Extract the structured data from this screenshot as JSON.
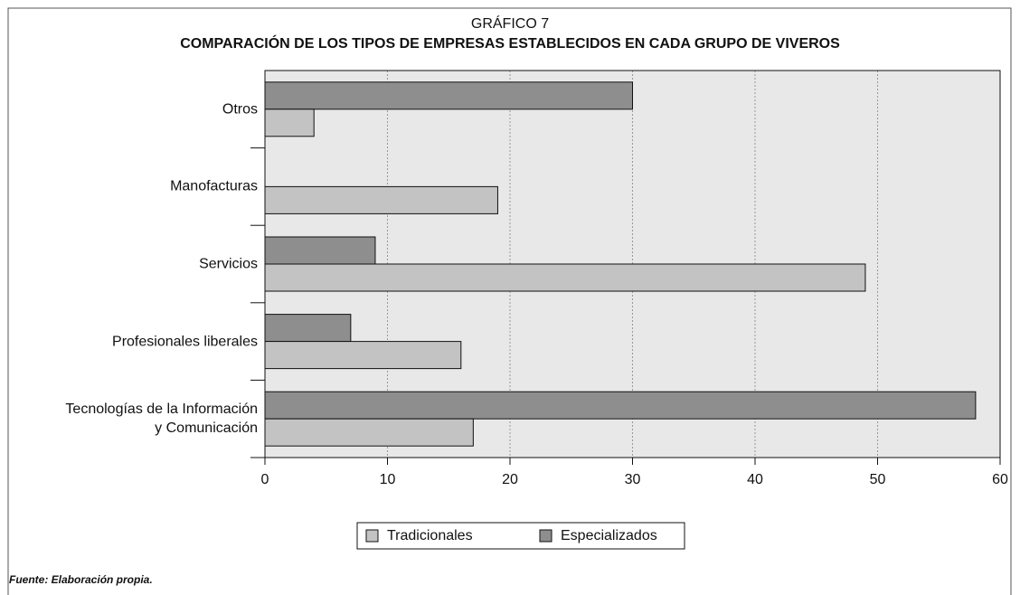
{
  "chart_data": {
    "type": "bar",
    "orientation": "horizontal",
    "supertitle": "GRÁFICO 7",
    "title": "COMPARACIÓN DE LOS TIPOS DE EMPRESAS ESTABLECIDOS EN CADA GRUPO DE VIVEROS",
    "categories": [
      "Otros",
      "Manofacturas",
      "Servicios",
      "Profesionales liberales",
      "Tecnologías de la Información\ny Comunicación"
    ],
    "series": [
      {
        "name": "Tradicionales",
        "color": "#c3c3c3",
        "values": [
          4,
          19,
          49,
          16,
          17
        ]
      },
      {
        "name": "Especializados",
        "color": "#8e8e8e",
        "values": [
          30,
          0,
          9,
          7,
          58
        ]
      }
    ],
    "xlim": [
      0,
      60
    ],
    "xticks": [
      0,
      10,
      20,
      30,
      40,
      50,
      60
    ],
    "grid": true,
    "legend": "bottom",
    "source": "Fuente: Elaboración propia."
  }
}
